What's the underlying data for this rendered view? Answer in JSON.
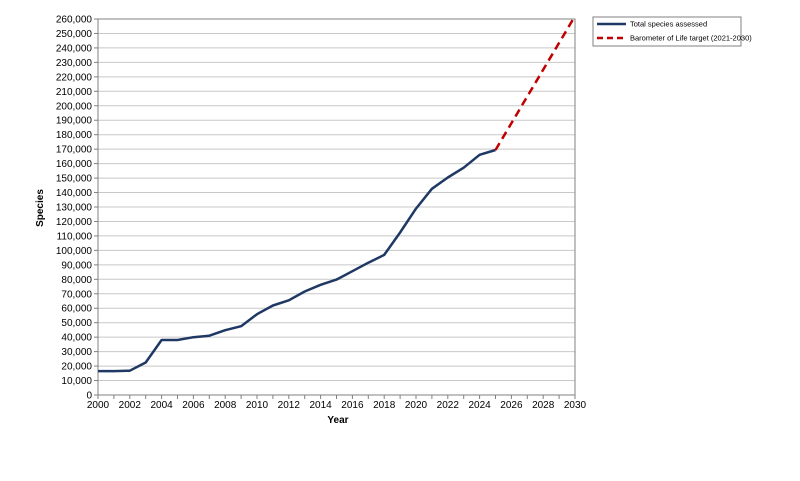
{
  "chart_data": {
    "type": "line",
    "xlabel": "Year",
    "ylabel": "Species",
    "xlim": [
      2000,
      2030
    ],
    "ylim": [
      0,
      260000
    ],
    "x_ticks": [
      2000,
      2002,
      2004,
      2006,
      2008,
      2010,
      2012,
      2014,
      2016,
      2018,
      2020,
      2022,
      2024,
      2026,
      2028,
      2030
    ],
    "x_tick_labels": [
      "2000",
      "2002",
      "2004",
      "2006",
      "2008",
      "2010",
      "2012",
      "2014",
      "2016",
      "2018",
      "2020",
      "2022",
      "2024",
      "2026",
      "2028",
      "2030"
    ],
    "y_ticks": [
      0,
      10000,
      20000,
      30000,
      40000,
      50000,
      60000,
      70000,
      80000,
      90000,
      100000,
      110000,
      120000,
      130000,
      140000,
      150000,
      160000,
      170000,
      180000,
      190000,
      200000,
      210000,
      220000,
      230000,
      240000,
      250000,
      260000
    ],
    "y_tick_labels": [
      "0",
      "10,000",
      "20,000",
      "30,000",
      "40,000",
      "50,000",
      "60,000",
      "70,000",
      "80,000",
      "90,000",
      "100,000",
      "110,000",
      "120,000",
      "130,000",
      "140,000",
      "150,000",
      "160,000",
      "170,000",
      "180,000",
      "190,000",
      "200,000",
      "210,000",
      "220,000",
      "230,000",
      "240,000",
      "250,000",
      "260,000"
    ],
    "grid": "horizontal",
    "legend_position": "top-right",
    "series": [
      {
        "name": "Total species assessed",
        "color": "#1f3864",
        "style": "solid",
        "x": [
          2000,
          2001,
          2002,
          2003,
          2004,
          2005,
          2006,
          2007,
          2008,
          2009,
          2010,
          2011,
          2012,
          2013,
          2014,
          2015,
          2016,
          2017,
          2018,
          2019,
          2020,
          2021,
          2022,
          2023,
          2024,
          2025
        ],
        "values": [
          16500,
          16500,
          16800,
          22500,
          38000,
          38000,
          40000,
          41000,
          44800,
          47600,
          55900,
          61900,
          65500,
          71600,
          76200,
          79800,
          85600,
          91500,
          96900,
          112400,
          128900,
          142600,
          150400,
          157200,
          166100,
          169400
        ]
      },
      {
        "name": "Barometer of Life target (2021-2030)",
        "color": "#c00000",
        "style": "dashed",
        "x": [
          2025,
          2030
        ],
        "values": [
          169400,
          262000
        ]
      }
    ]
  }
}
